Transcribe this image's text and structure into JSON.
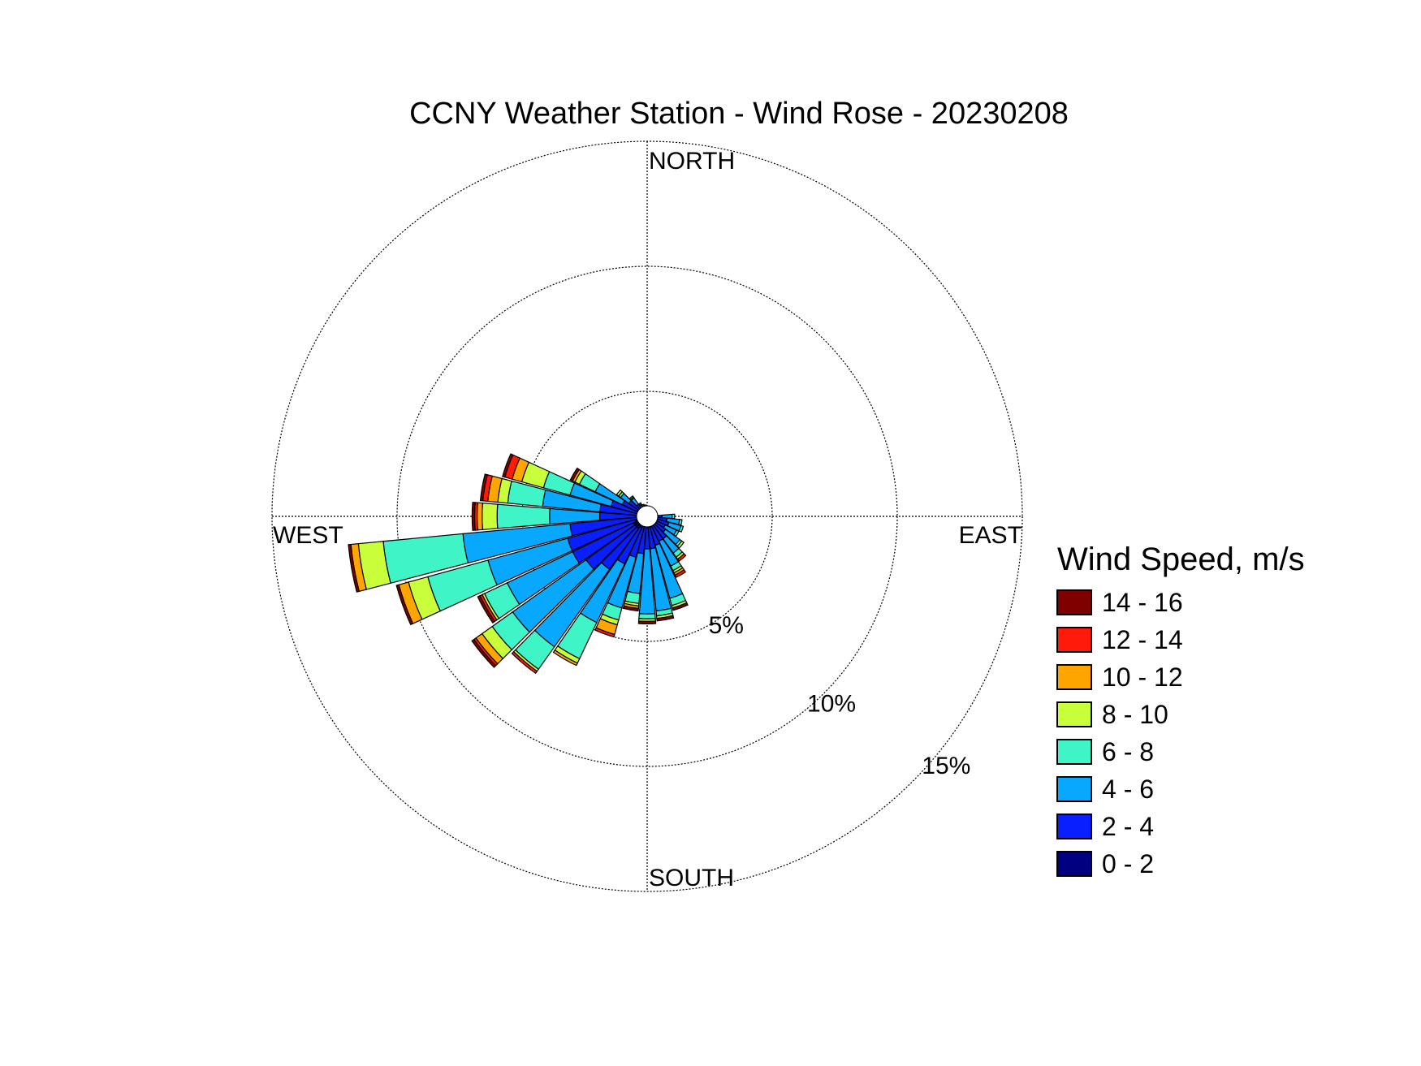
{
  "chart_data": {
    "type": "wind_rose",
    "title": "CCNY Weather Station - Wind Rose - 20230208",
    "directions": {
      "north": "NORTH",
      "east": "EAST",
      "south": "SOUTH",
      "west": "WEST"
    },
    "radial_max_percent": 15,
    "rings": [
      {
        "value": 5,
        "label": "5%"
      },
      {
        "value": 10,
        "label": "10%"
      },
      {
        "value": 15,
        "label": "15%"
      }
    ],
    "legend": {
      "title": "Wind Speed, m/s",
      "bins": [
        {
          "label": "0 - 2",
          "color": "#000080"
        },
        {
          "label": "2 - 4",
          "color": "#0a1fff"
        },
        {
          "label": "4 - 6",
          "color": "#08a8ff"
        },
        {
          "label": "6 - 8",
          "color": "#3ff5c8"
        },
        {
          "label": "8 - 10",
          "color": "#c8ff3a"
        },
        {
          "label": "10 - 12",
          "color": "#ffa500"
        },
        {
          "label": "12 - 14",
          "color": "#ff1a0a"
        },
        {
          "label": "14 - 16",
          "color": "#800000"
        }
      ]
    },
    "sector_width_deg": 10,
    "series_units": "cumulative percent frequency per direction sector, by speed bin (0-2 through 14-16 m/s)",
    "sectors": [
      {
        "direction_deg": 90,
        "cumulative": [
          0.2,
          0.6,
          1.0,
          1.1,
          1.1,
          1.1,
          1.1,
          1.1
        ]
      },
      {
        "direction_deg": 100,
        "cumulative": [
          0.2,
          0.8,
          1.3,
          1.4,
          1.4,
          1.4,
          1.4,
          1.4
        ]
      },
      {
        "direction_deg": 110,
        "cumulative": [
          0.2,
          0.9,
          1.4,
          1.5,
          1.5,
          1.5,
          1.5,
          1.5
        ]
      },
      {
        "direction_deg": 120,
        "cumulative": [
          0.2,
          0.8,
          1.3,
          1.4,
          1.4,
          1.4,
          1.4,
          1.4
        ]
      },
      {
        "direction_deg": 130,
        "cumulative": [
          0.2,
          0.9,
          1.6,
          1.7,
          1.8,
          1.8,
          1.8,
          1.8
        ]
      },
      {
        "direction_deg": 140,
        "cumulative": [
          0.3,
          1.1,
          1.8,
          2.0,
          2.1,
          2.1,
          2.2,
          2.2
        ]
      },
      {
        "direction_deg": 150,
        "cumulative": [
          0.3,
          1.1,
          2.2,
          2.4,
          2.5,
          2.6,
          2.7,
          2.7
        ]
      },
      {
        "direction_deg": 160,
        "cumulative": [
          0.3,
          1.2,
          3.4,
          3.7,
          3.8,
          3.8,
          3.8,
          3.9
        ]
      },
      {
        "direction_deg": 170,
        "cumulative": [
          0.3,
          1.3,
          3.8,
          4.0,
          4.1,
          4.1,
          4.1,
          4.2
        ]
      },
      {
        "direction_deg": 180,
        "cumulative": [
          0.3,
          1.3,
          3.9,
          4.1,
          4.2,
          4.2,
          4.2,
          4.3
        ]
      },
      {
        "direction_deg": 190,
        "cumulative": [
          0.4,
          1.5,
          3.1,
          3.5,
          3.6,
          3.7,
          3.7,
          3.8
        ]
      },
      {
        "direction_deg": 200,
        "cumulative": [
          0.4,
          1.7,
          3.8,
          4.3,
          4.5,
          4.9,
          5.0,
          5.0
        ]
      },
      {
        "direction_deg": 210,
        "cumulative": [
          0.5,
          2.1,
          4.7,
          6.3,
          6.5,
          6.6,
          6.6,
          6.6
        ]
      },
      {
        "direction_deg": 220,
        "cumulative": [
          0.6,
          2.6,
          6.4,
          7.5,
          7.6,
          7.6,
          7.7,
          7.7
        ]
      },
      {
        "direction_deg": 230,
        "cumulative": [
          0.6,
          3.0,
          6.6,
          7.6,
          8.1,
          8.4,
          8.5,
          8.6
        ]
      },
      {
        "direction_deg": 240,
        "cumulative": [
          0.6,
          3.3,
          6.2,
          7.2,
          7.3,
          7.3,
          7.4,
          7.5
        ]
      },
      {
        "direction_deg": 250,
        "cumulative": [
          0.5,
          3.3,
          6.6,
          9.1,
          9.9,
          10.3,
          10.3,
          10.4
        ]
      },
      {
        "direction_deg": 260,
        "cumulative": [
          0.4,
          3.1,
          7.4,
          10.6,
          11.6,
          11.9,
          11.9,
          12.0
        ]
      },
      {
        "direction_deg": 270,
        "cumulative": [
          0.3,
          1.9,
          3.9,
          6.0,
          6.6,
          6.8,
          6.9,
          7.0
        ]
      },
      {
        "direction_deg": 280,
        "cumulative": [
          0.3,
          1.9,
          4.2,
          5.6,
          6.0,
          6.4,
          6.6,
          6.7
        ]
      },
      {
        "direction_deg": 290,
        "cumulative": [
          0.2,
          1.5,
          3.2,
          4.3,
          5.2,
          5.6,
          5.9,
          6.0
        ]
      },
      {
        "direction_deg": 300,
        "cumulative": [
          0.2,
          1.1,
          2.3,
          3.0,
          3.2,
          3.3,
          3.3,
          3.4
        ]
      },
      {
        "direction_deg": 310,
        "cumulative": [
          0.2,
          0.9,
          1.3,
          1.4,
          1.5,
          1.5,
          1.5,
          1.5
        ]
      },
      {
        "direction_deg": 320,
        "cumulative": [
          0.2,
          0.6,
          0.9,
          0.95,
          1.0,
          1.0,
          1.0,
          1.0
        ]
      },
      {
        "direction_deg": 330,
        "cumulative": [
          0.2,
          0.4,
          0.5,
          0.55,
          0.6,
          0.6,
          0.6,
          0.6
        ]
      },
      {
        "direction_deg": 340,
        "cumulative": [
          0.2,
          0.3,
          0.4,
          0.45,
          0.5,
          0.5,
          0.5,
          0.5
        ]
      },
      {
        "direction_deg": 350,
        "cumulative": [
          0.2,
          0.3,
          0.35,
          0.4,
          0.4,
          0.4,
          0.4,
          0.4
        ]
      }
    ]
  }
}
